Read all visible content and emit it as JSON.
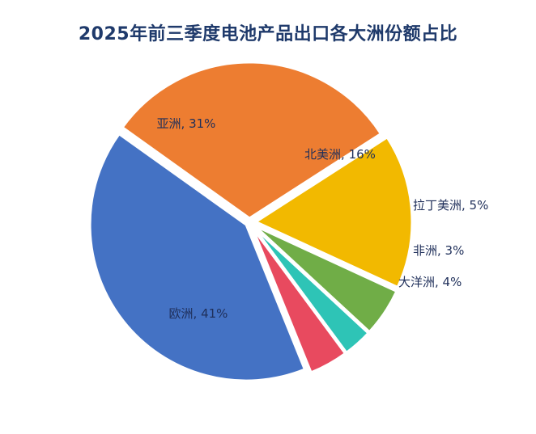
{
  "chart_data": {
    "type": "pie",
    "title": "2025年前三季度电池产品出口各大洲份额占比",
    "unit": "%",
    "slices": [
      {
        "label": "欧洲",
        "value": 41,
        "display": "欧洲, 41%",
        "color": "#4472c4"
      },
      {
        "label": "亚洲",
        "value": 31,
        "display": "亚洲, 31%",
        "color": "#ed7d31"
      },
      {
        "label": "北美洲",
        "value": 16,
        "display": "北美洲, 16%",
        "color": "#f2b900"
      },
      {
        "label": "拉丁美洲",
        "value": 5,
        "display": "拉丁美洲, 5%",
        "color": "#70ad47"
      },
      {
        "label": "非洲",
        "value": 3,
        "display": "非洲, 3%",
        "color": "#2ec4b6"
      },
      {
        "label": "大洋洲",
        "value": 4,
        "display": "大洋洲, 4%",
        "color": "#e84a5f"
      }
    ],
    "legend": "none"
  }
}
